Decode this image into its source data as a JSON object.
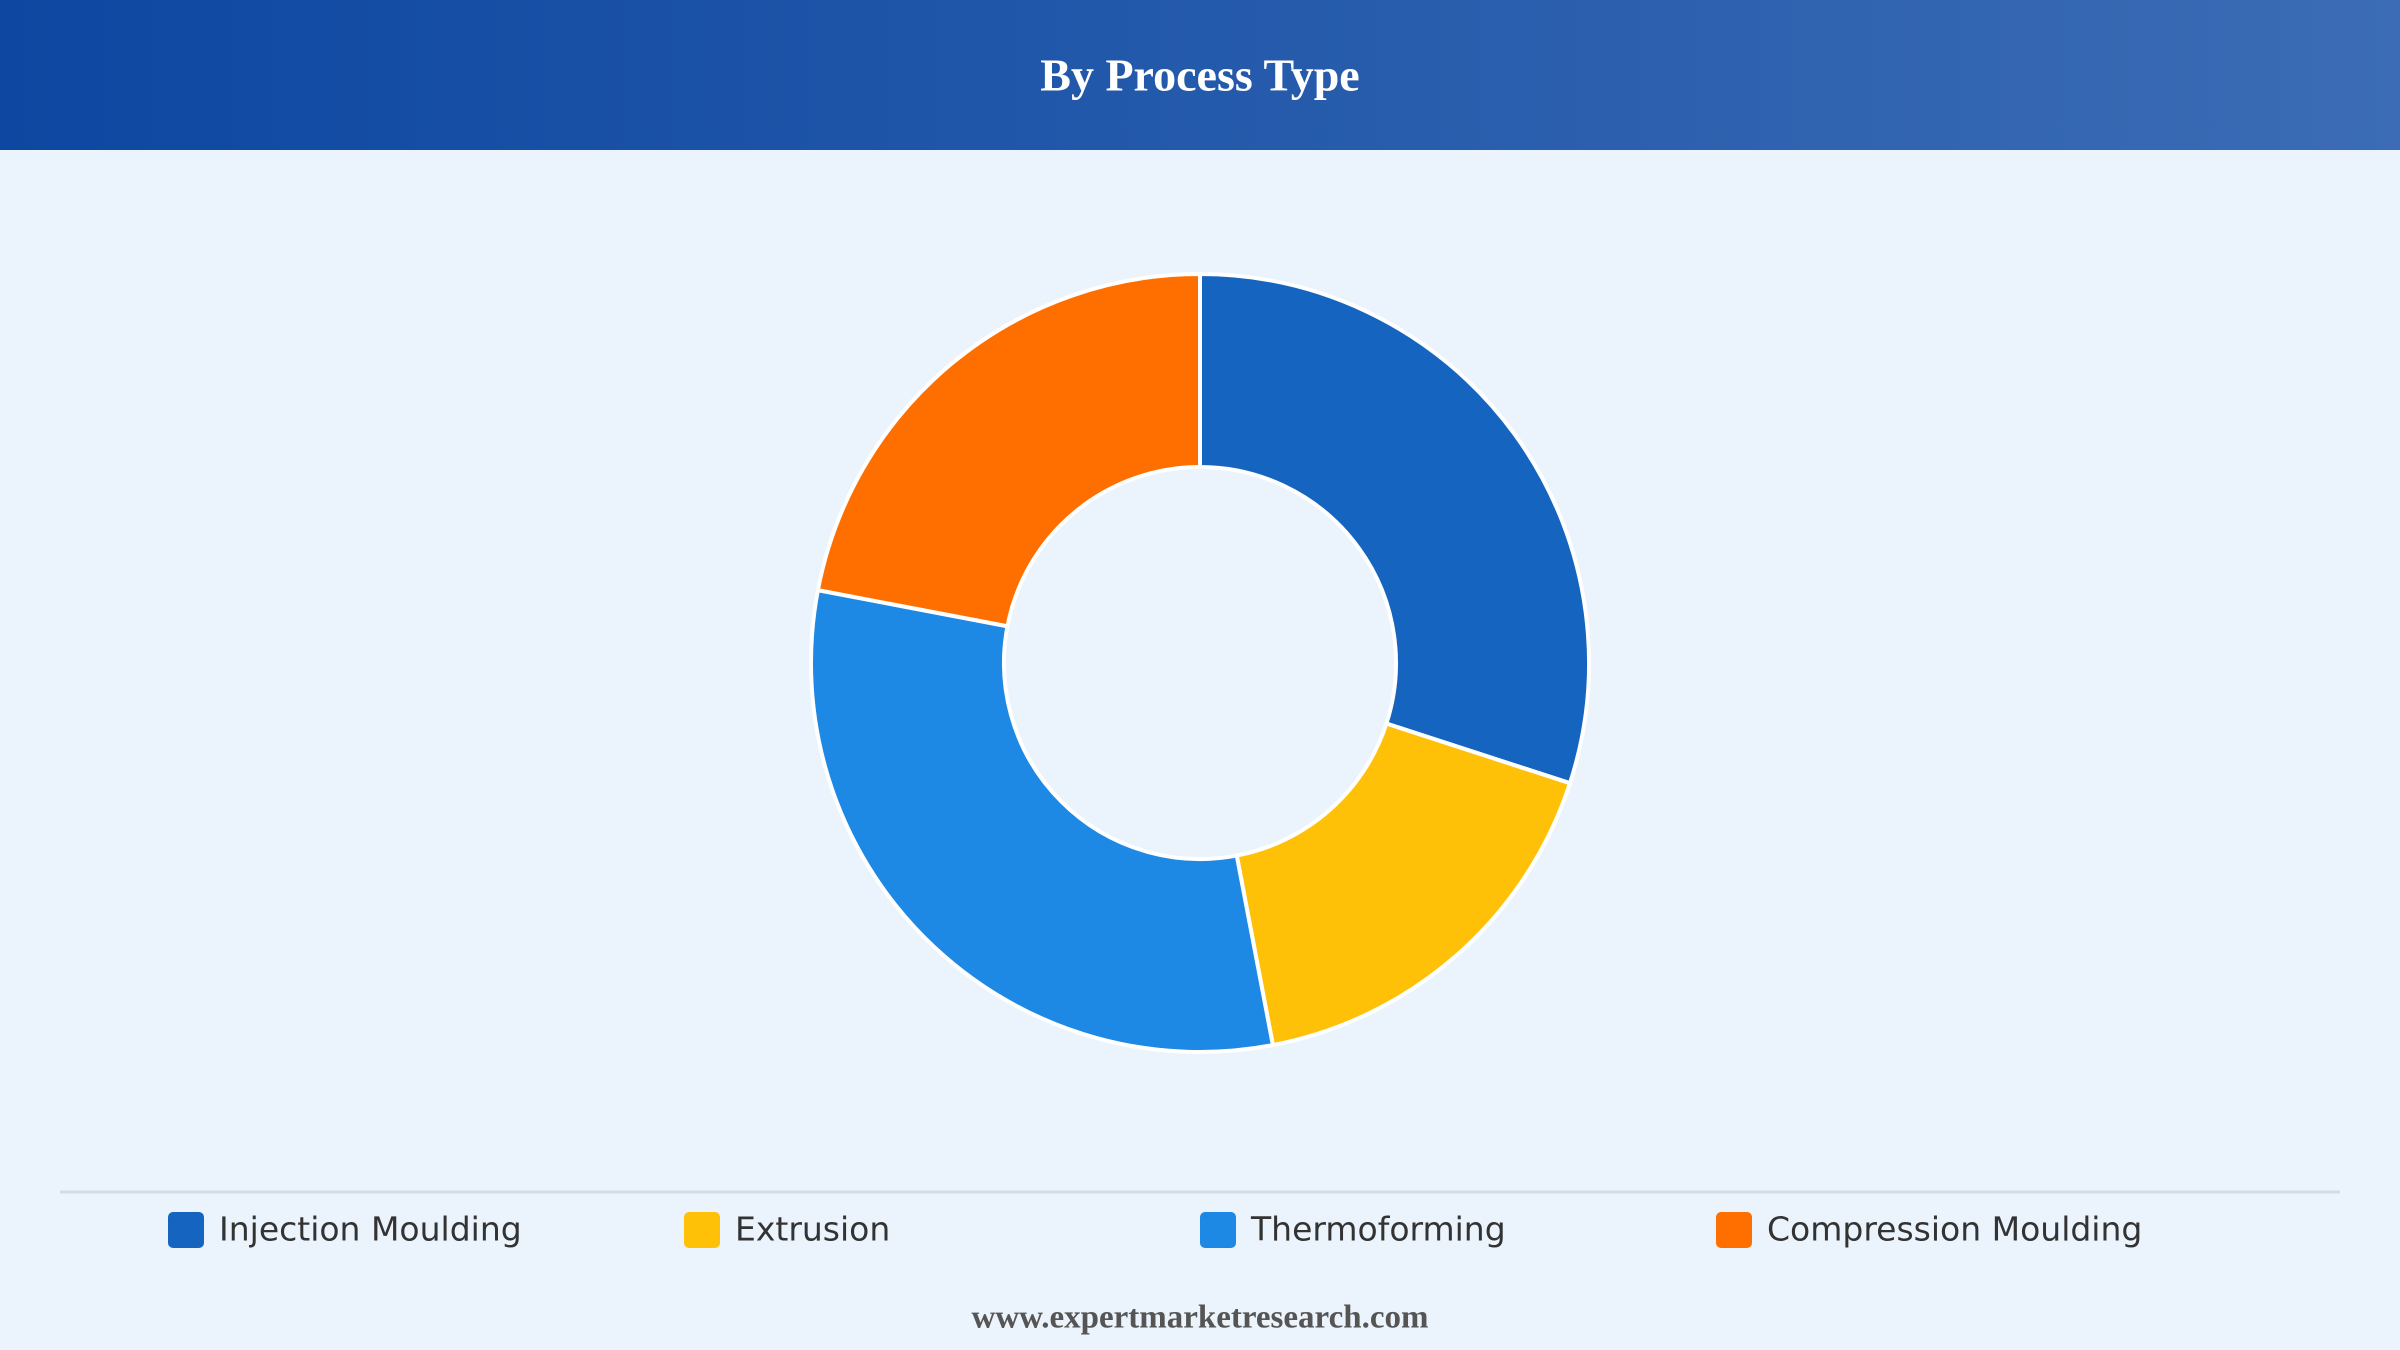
{
  "chart_data": {
    "type": "donut",
    "title": "By Process Type",
    "categories": [
      "Injection Moulding",
      "Extrusion",
      "Thermoforming",
      "Compression Moulding"
    ],
    "values": [
      30,
      17,
      31,
      22
    ],
    "colors": [
      "#1565c0",
      "#ffc107",
      "#1e88e5",
      "#ff6f00"
    ],
    "legend": "bottom"
  },
  "footer": {
    "text": "www.expertmarketresearch.com"
  }
}
